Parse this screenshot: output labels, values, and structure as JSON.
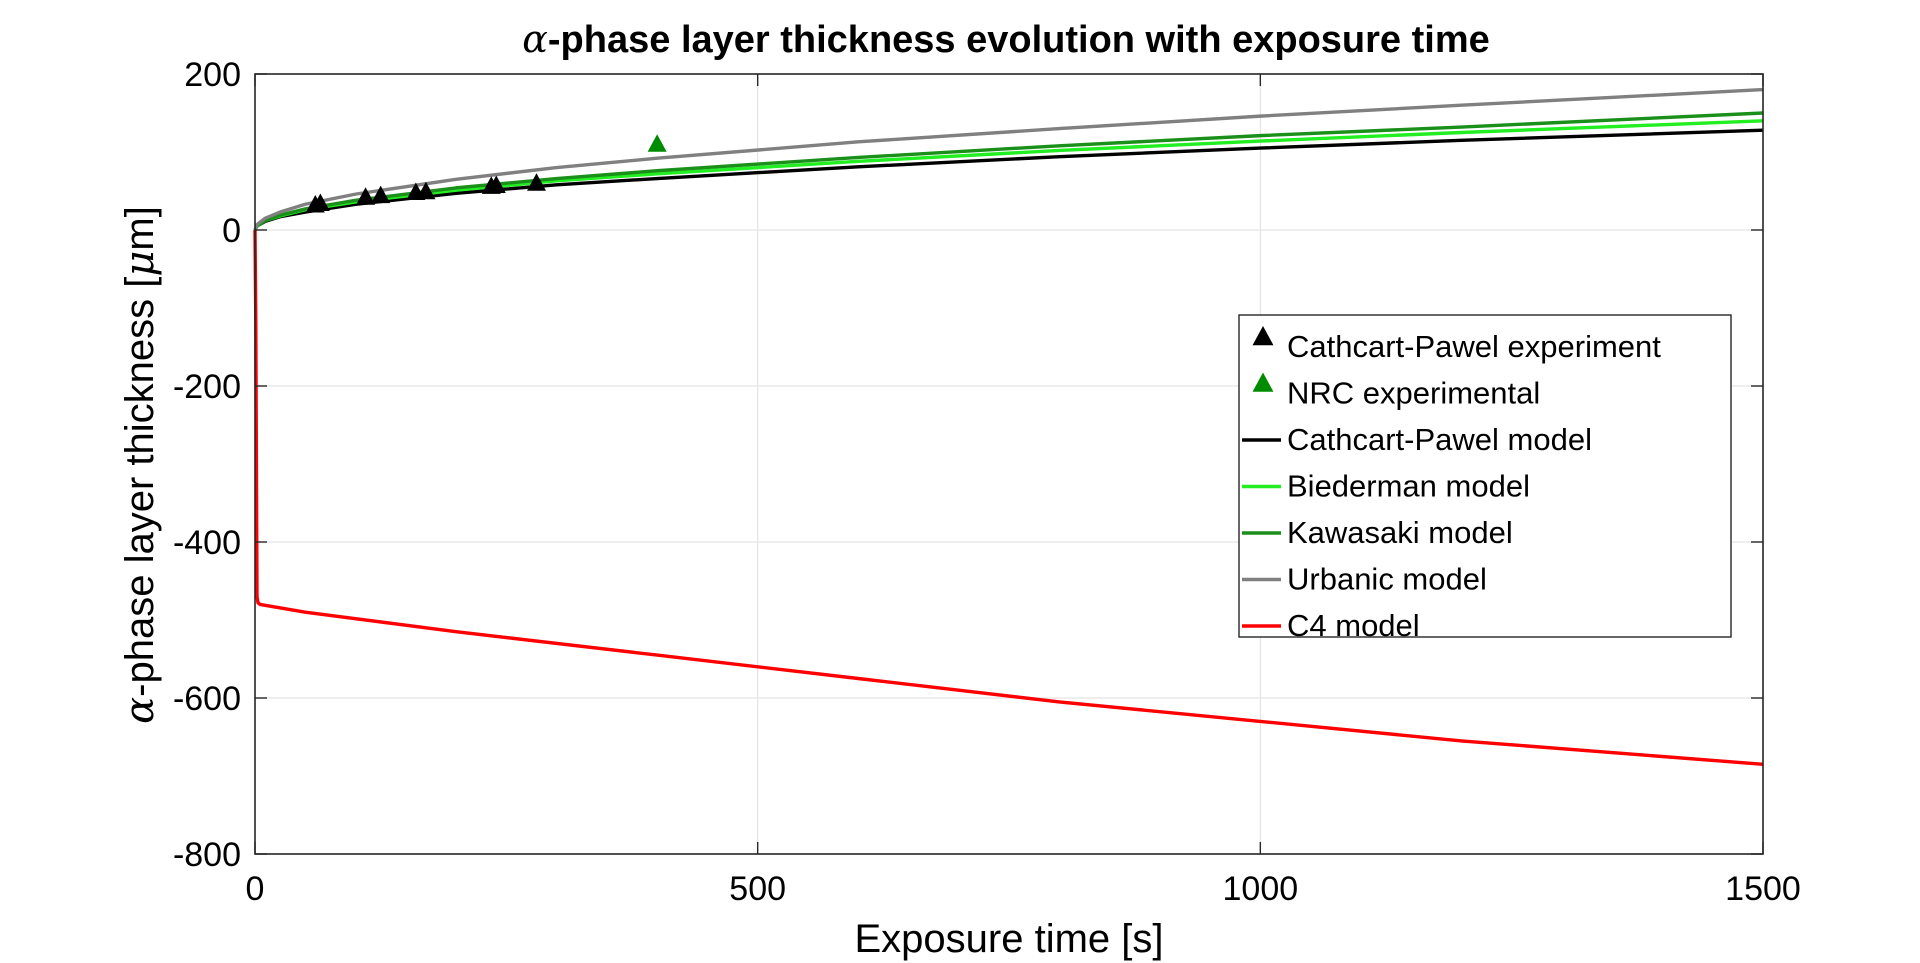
{
  "chart_data": {
    "type": "line",
    "title_symbol": "α",
    "title_rest": "-phase layer thickness evolution with exposure time",
    "xlabel": "Exposure time [s]",
    "ylabel_symbol": "α",
    "ylabel_rest": "-phase layer thickness [",
    "ylabel_mu": "μ",
    "ylabel_end": "m]",
    "xlim": [
      0,
      1500
    ],
    "ylim": [
      -800,
      200
    ],
    "xticks": [
      0,
      500,
      1000,
      1500
    ],
    "xtick_labels": [
      "0",
      "500",
      "1000",
      "1500"
    ],
    "yticks": [
      -800,
      -600,
      -400,
      -200,
      0,
      200
    ],
    "ytick_labels": [
      "-800",
      "-600",
      "-400",
      "-200",
      "0",
      "200"
    ],
    "grid": true,
    "legend_position": "right",
    "series": [
      {
        "name": "Cathcart-Pawel experiment",
        "kind": "scatter",
        "marker": "triangle",
        "color": "#000000",
        "x": [
          60,
          65,
          110,
          125,
          160,
          170,
          235,
          240,
          280
        ],
        "y": [
          32,
          34,
          42,
          44,
          48,
          49,
          56,
          57,
          60
        ]
      },
      {
        "name": "NRC experimental",
        "kind": "scatter",
        "marker": "triangle",
        "color": "#008c00",
        "x": [
          400
        ],
        "y": [
          110
        ]
      },
      {
        "name": "Cathcart-Pawel model",
        "kind": "line",
        "color": "#000000",
        "x": [
          0,
          2,
          10,
          25,
          50,
          100,
          200,
          300,
          400,
          600,
          800,
          1000,
          1200,
          1500
        ],
        "y": [
          0,
          5,
          11,
          17,
          23,
          33,
          47,
          58,
          66,
          81,
          94,
          105,
          115,
          128
        ]
      },
      {
        "name": "Biederman model",
        "kind": "line",
        "color": "#22ee22",
        "x": [
          0,
          2,
          10,
          25,
          50,
          100,
          200,
          300,
          400,
          600,
          800,
          1000,
          1200,
          1500
        ],
        "y": [
          0,
          5,
          12,
          18,
          26,
          36,
          51,
          63,
          72,
          88,
          102,
          114,
          125,
          140
        ]
      },
      {
        "name": "Kawasaki model",
        "kind": "line",
        "color": "#1a8f1a",
        "x": [
          0,
          2,
          10,
          25,
          50,
          100,
          200,
          300,
          400,
          600,
          800,
          1000,
          1200,
          1500
        ],
        "y": [
          0,
          6,
          12,
          19,
          27,
          38,
          54,
          66,
          76,
          93,
          108,
          121,
          132,
          150
        ]
      },
      {
        "name": "Urbanic model",
        "kind": "line",
        "color": "#808080",
        "x": [
          0,
          2,
          10,
          25,
          50,
          100,
          200,
          300,
          400,
          600,
          800,
          1000,
          1200,
          1500
        ],
        "y": [
          0,
          7,
          15,
          23,
          33,
          46,
          65,
          80,
          92,
          113,
          130,
          146,
          160,
          180
        ]
      },
      {
        "name": "C4 model",
        "kind": "line",
        "color": "#ff0000",
        "x": [
          0,
          0.8,
          1.5,
          2,
          3,
          5,
          50,
          200,
          400,
          600,
          800,
          1000,
          1200,
          1500
        ],
        "y": [
          0,
          -120,
          -330,
          -470,
          -478,
          -480,
          -490,
          -515,
          -545,
          -575,
          -605,
          -630,
          -655,
          -685
        ]
      }
    ]
  }
}
